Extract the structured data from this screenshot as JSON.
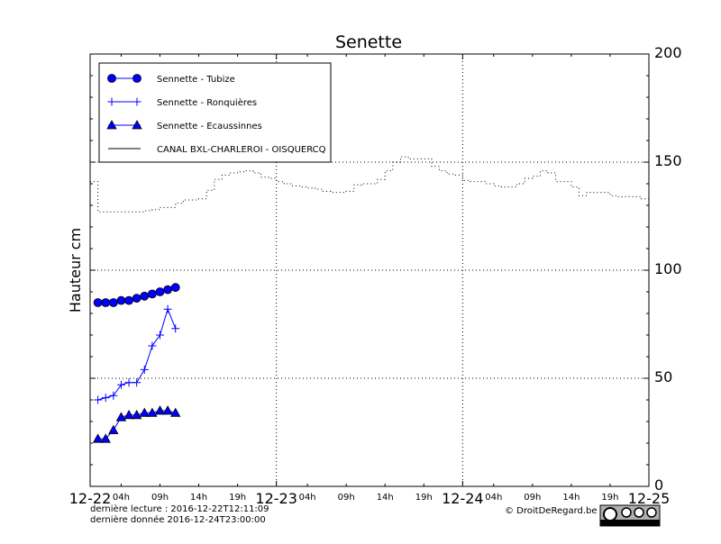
{
  "chart_data": {
    "type": "line",
    "title": "Senette",
    "ylabel": "Hauteur cm",
    "xlabel": "",
    "ylim": [
      0,
      200
    ],
    "yticks": [
      "0",
      "50",
      "100",
      "150",
      "200"
    ],
    "xlim": [
      "2016-12-22T00:00",
      "2016-12-25T00:00"
    ],
    "xticks_major": [
      {
        "t": "2016-12-22T00:00",
        "label": "12-22"
      },
      {
        "t": "2016-12-23T00:00",
        "label": "12-23"
      },
      {
        "t": "2016-12-24T00:00",
        "label": "12-24"
      },
      {
        "t": "2016-12-25T00:00",
        "label": "12-25"
      }
    ],
    "xticks_minor": [
      {
        "t": "2016-12-22T04:00",
        "label": "04h"
      },
      {
        "t": "2016-12-22T09:00",
        "label": "09h"
      },
      {
        "t": "2016-12-22T14:00",
        "label": "14h"
      },
      {
        "t": "2016-12-22T19:00",
        "label": "19h"
      },
      {
        "t": "2016-12-23T04:00",
        "label": "04h"
      },
      {
        "t": "2016-12-23T09:00",
        "label": "09h"
      },
      {
        "t": "2016-12-23T14:00",
        "label": "14h"
      },
      {
        "t": "2016-12-23T19:00",
        "label": "19h"
      },
      {
        "t": "2016-12-24T04:00",
        "label": "04h"
      },
      {
        "t": "2016-12-24T09:00",
        "label": "09h"
      },
      {
        "t": "2016-12-24T14:00",
        "label": "14h"
      },
      {
        "t": "2016-12-24T19:00",
        "label": "19h"
      }
    ],
    "grid": true,
    "legend_placement": "top-left",
    "series": [
      {
        "name": "Sennette - Tubize",
        "color": "#0000ff",
        "marker": "circle",
        "x": [
          "2016-12-22T01:00",
          "2016-12-22T02:00",
          "2016-12-22T03:00",
          "2016-12-22T04:00",
          "2016-12-22T05:00",
          "2016-12-22T06:00",
          "2016-12-22T07:00",
          "2016-12-22T08:00",
          "2016-12-22T09:00",
          "2016-12-22T10:00",
          "2016-12-22T11:00"
        ],
        "y": [
          85,
          85,
          85,
          86,
          86,
          87,
          88,
          89,
          90,
          91,
          92
        ]
      },
      {
        "name": "Sennette - Ronquières",
        "color": "#0000ff",
        "marker": "plus",
        "x": [
          "2016-12-22T01:00",
          "2016-12-22T02:00",
          "2016-12-22T03:00",
          "2016-12-22T04:00",
          "2016-12-22T05:00",
          "2016-12-22T06:00",
          "2016-12-22T07:00",
          "2016-12-22T08:00",
          "2016-12-22T09:00",
          "2016-12-22T10:00",
          "2016-12-22T11:00"
        ],
        "y": [
          40,
          41,
          42,
          47,
          48,
          48,
          54,
          65,
          70,
          82,
          73
        ]
      },
      {
        "name": "Sennette - Ecaussinnes",
        "color": "#0000ff",
        "marker": "triangle",
        "x": [
          "2016-12-22T01:00",
          "2016-12-22T02:00",
          "2016-12-22T03:00",
          "2016-12-22T04:00",
          "2016-12-22T05:00",
          "2016-12-22T06:00",
          "2016-12-22T07:00",
          "2016-12-22T08:00",
          "2016-12-22T09:00",
          "2016-12-22T10:00",
          "2016-12-22T11:00"
        ],
        "y": [
          22,
          22,
          26,
          32,
          33,
          33,
          34,
          34,
          35,
          35,
          34
        ]
      },
      {
        "name": "CANAL BXL-CHARLEROI  - OISQUERCQ",
        "color": "#000000",
        "marker": "none",
        "style": "dotted-steps",
        "x": [
          "2016-12-22T00:00",
          "2016-12-22T01:00",
          "2016-12-22T02:00",
          "2016-12-22T03:00",
          "2016-12-22T04:00",
          "2016-12-22T05:00",
          "2016-12-22T06:00",
          "2016-12-22T07:00",
          "2016-12-22T08:00",
          "2016-12-22T09:00",
          "2016-12-22T10:00",
          "2016-12-22T11:00",
          "2016-12-22T12:00",
          "2016-12-22T13:00",
          "2016-12-22T14:00",
          "2016-12-22T15:00",
          "2016-12-22T16:00",
          "2016-12-22T17:00",
          "2016-12-22T18:00",
          "2016-12-22T19:00",
          "2016-12-22T20:00",
          "2016-12-22T21:00",
          "2016-12-22T22:00",
          "2016-12-22T23:00",
          "2016-12-23T00:00",
          "2016-12-23T01:00",
          "2016-12-23T02:00",
          "2016-12-23T03:00",
          "2016-12-23T04:00",
          "2016-12-23T05:00",
          "2016-12-23T06:00",
          "2016-12-23T07:00",
          "2016-12-23T08:00",
          "2016-12-23T09:00",
          "2016-12-23T10:00",
          "2016-12-23T11:00",
          "2016-12-23T12:00",
          "2016-12-23T13:00",
          "2016-12-23T14:00",
          "2016-12-23T15:00",
          "2016-12-23T16:00",
          "2016-12-23T17:00",
          "2016-12-23T18:00",
          "2016-12-23T19:00",
          "2016-12-23T20:00",
          "2016-12-23T21:00",
          "2016-12-23T22:00",
          "2016-12-23T23:00",
          "2016-12-24T00:00",
          "2016-12-24T01:00",
          "2016-12-24T02:00",
          "2016-12-24T03:00",
          "2016-12-24T04:00",
          "2016-12-24T05:00",
          "2016-12-24T06:00",
          "2016-12-24T07:00",
          "2016-12-24T08:00",
          "2016-12-24T09:00",
          "2016-12-24T10:00",
          "2016-12-24T11:00",
          "2016-12-24T12:00",
          "2016-12-24T13:00",
          "2016-12-24T14:00",
          "2016-12-24T15:00",
          "2016-12-24T16:00",
          "2016-12-24T17:00",
          "2016-12-24T18:00",
          "2016-12-24T19:00",
          "2016-12-24T20:00",
          "2016-12-24T21:00",
          "2016-12-24T22:00",
          "2016-12-24T23:00"
        ],
        "y": [
          141,
          127,
          127,
          127,
          127,
          127,
          127,
          127.5,
          128,
          129,
          129,
          131,
          132.5,
          132.5,
          133,
          137,
          142,
          144,
          145,
          145.5,
          146,
          145,
          143,
          142.5,
          141,
          140,
          139,
          138.5,
          138,
          137.5,
          136.5,
          136,
          136,
          136.5,
          139.5,
          140,
          140,
          142,
          146,
          150,
          152.5,
          151.5,
          151.5,
          151.5,
          148,
          146,
          144.5,
          144,
          141.5,
          141,
          141,
          140,
          139,
          138.5,
          138.5,
          140,
          142.5,
          143.5,
          146,
          145,
          141,
          141,
          138.5,
          134.5,
          136,
          136,
          136,
          134.5,
          134,
          134,
          134,
          133
        ]
      }
    ]
  },
  "footer": {
    "last_read": "dernière lecture : 2016-12-22T12:11:09",
    "last_data": "dernière donnée  2016-12-24T23:00:00",
    "copyright": "© DroitDeRegard.be",
    "license_logo": "cc BY NC SA"
  }
}
